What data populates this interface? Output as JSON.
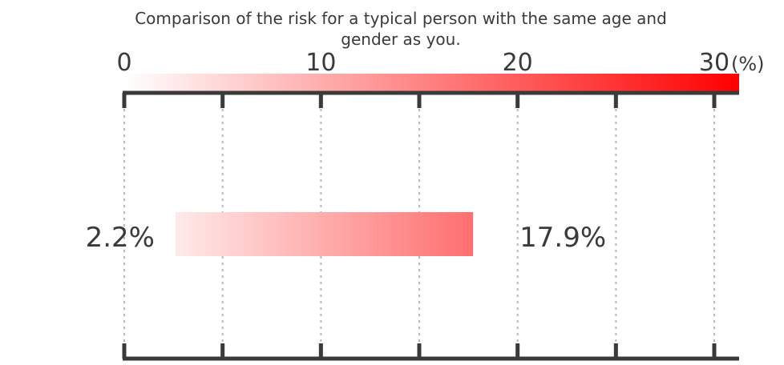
{
  "chart_data": {
    "type": "bar",
    "title": "Comparison of the risk for a typical person with the same age and gender as you.",
    "axis": {
      "min": 0,
      "max": 30,
      "unit": "(%)",
      "ticks": [
        0,
        5,
        10,
        15,
        20,
        25,
        30
      ],
      "tick_labels": [
        {
          "value": 0,
          "label": "0"
        },
        {
          "value": 10,
          "label": "10"
        },
        {
          "value": 20,
          "label": "20"
        },
        {
          "value": 30,
          "label": "30"
        }
      ],
      "grid": true
    },
    "range_bar": {
      "low": 2.2,
      "high": 17.9,
      "low_label": "2.2%",
      "high_label": "17.9%"
    },
    "colors": {
      "gradient_start": "#ffffff",
      "gradient_end": "#ff0000",
      "axis": "#3a3a3a",
      "grid": "#b8b8b8",
      "text": "#3a3a3a"
    }
  }
}
